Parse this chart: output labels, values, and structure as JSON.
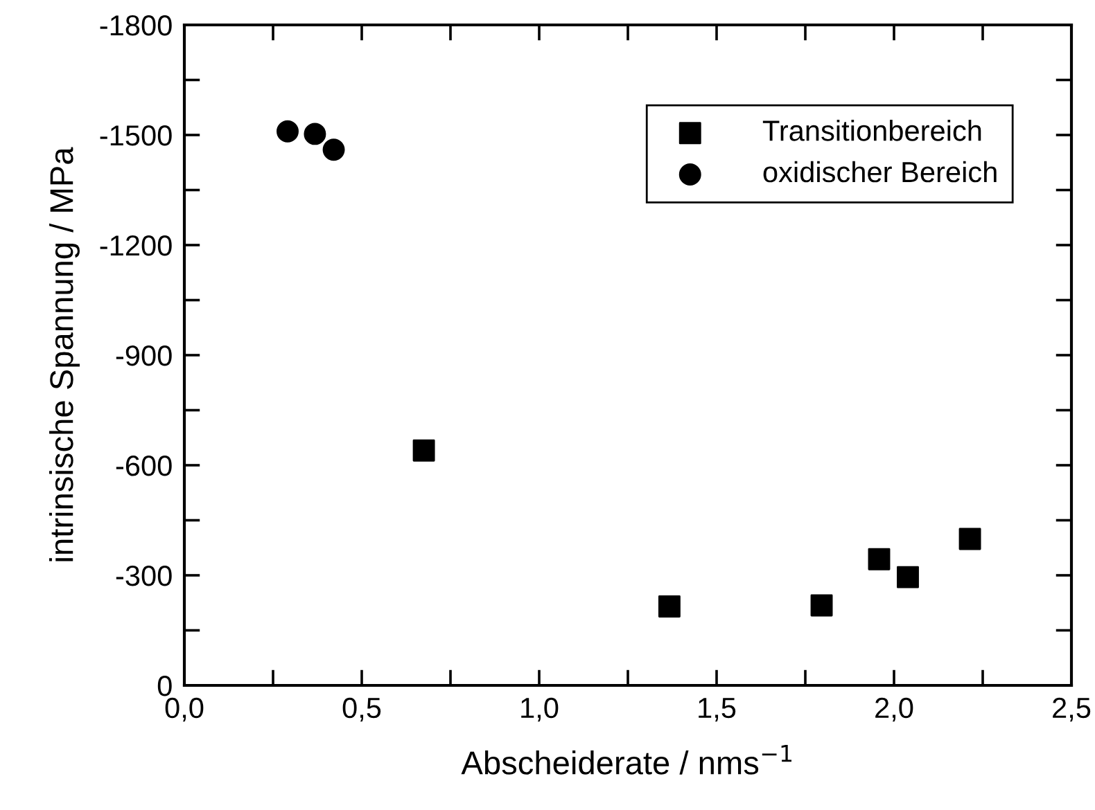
{
  "chart_data": {
    "type": "scatter",
    "xlabel": "Abscheiderate / nms$^{−1}$",
    "ylabel": "intrinsische Spannung / MPa",
    "series": [
      {
        "name": "Transitionbereich",
        "color": "#000000",
        "marker": "square",
        "x": [
          0.675,
          1.367,
          1.796,
          1.958,
          2.039,
          2.214
        ],
        "values": [
          -640,
          -215,
          -218,
          -344,
          -295,
          -399
        ]
      },
      {
        "name": "oxidischer Bereich",
        "color": "#000000",
        "marker": "circle",
        "x": [
          0.291,
          0.368,
          0.421
        ],
        "values": [
          -1510,
          -1503,
          -1460
        ]
      }
    ],
    "xlim": [
      0,
      2.5
    ],
    "ylim": [
      0,
      -1800
    ],
    "xticks": [
      {
        "value": 0,
        "label": "0,0"
      },
      {
        "value": 0.25,
        "label": null
      },
      {
        "value": 0.5,
        "label": "0,5"
      },
      {
        "value": 0.75,
        "label": null
      },
      {
        "value": 1.0,
        "label": "1,0"
      },
      {
        "value": 1.25,
        "label": null
      },
      {
        "value": 1.5,
        "label": "1,5"
      },
      {
        "value": 1.75,
        "label": null
      },
      {
        "value": 2.0,
        "label": "2,0"
      },
      {
        "value": 2.25,
        "label": null
      },
      {
        "value": 2.5,
        "label": "2,5"
      }
    ],
    "yticks": [
      0,
      {
        "value": -150,
        "label": null
      },
      -300,
      {
        "value": -450,
        "label": null
      },
      -600,
      {
        "value": -750,
        "label": null
      },
      -900,
      {
        "value": -1050,
        "label": null
      },
      -1200,
      {
        "value": -1350,
        "label": null
      },
      -1500,
      {
        "value": -1650,
        "label": null
      },
      -1800
    ],
    "grid": false,
    "legend": "top right"
  }
}
